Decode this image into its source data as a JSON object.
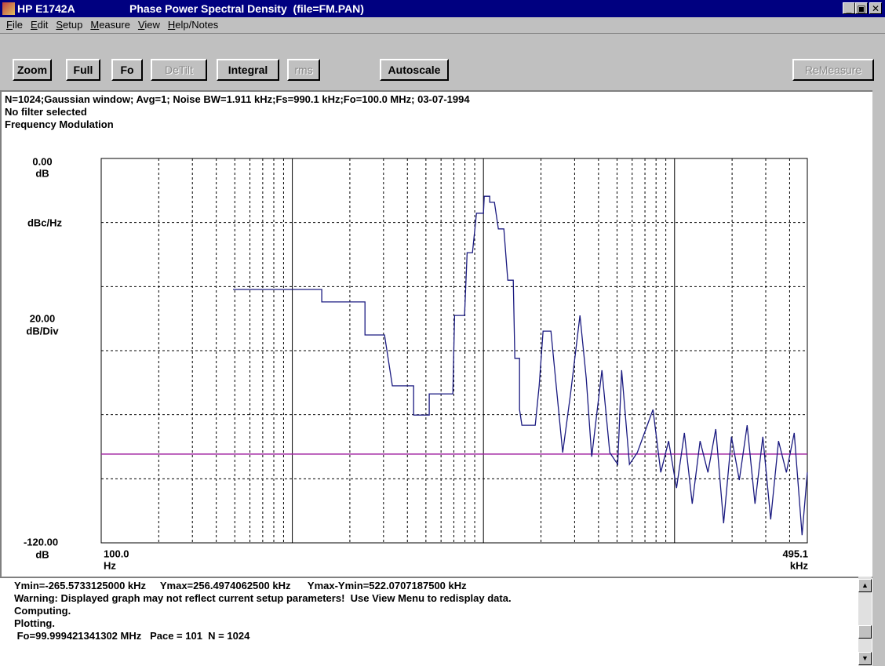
{
  "window": {
    "title": "HP E1742A",
    "subtitle": "Phase Power Spectral Density  (file=FM.PAN)"
  },
  "menu": [
    "File",
    "Edit",
    "Setup",
    "Measure",
    "View",
    "Help/Notes"
  ],
  "toolbar": [
    {
      "label": "Zoom",
      "enabled": true
    },
    {
      "label": "Full",
      "enabled": true
    },
    {
      "label": "Fo",
      "enabled": true
    },
    {
      "label": "DeTilt",
      "enabled": false
    },
    {
      "label": "Integral",
      "enabled": true
    },
    {
      "label": "rms",
      "enabled": false
    },
    {
      "label": "Autoscale",
      "enabled": true
    },
    {
      "label": "ReMeasure",
      "enabled": false
    }
  ],
  "info": [
    "N=1024;Gaussian window; Avg=1; Noise BW=1.911 kHz;Fs=990.1 kHz;Fo=100.0 MHz; 03-07-1994",
    "No filter selected",
    "Frequency Modulation"
  ],
  "chart_data": {
    "type": "line",
    "log_x": true,
    "xlim": [
      100,
      495100
    ],
    "ylim": [
      -120,
      0
    ],
    "ygrid": [
      -20,
      -40,
      -60,
      -80,
      -100
    ],
    "xgrid_minor": [
      200,
      300,
      400,
      500,
      600,
      700,
      800,
      900,
      2000,
      3000,
      4000,
      5000,
      6000,
      7000,
      8000,
      9000,
      20000,
      30000,
      40000,
      50000,
      60000,
      70000,
      80000,
      90000,
      200000,
      300000,
      400000
    ],
    "xgrid_major": [
      1000,
      10000,
      100000
    ],
    "y_top_label": "0.00",
    "y_top_unit": "dB",
    "y_unit_label": "dBc/Hz",
    "y_scale_label": "20.00",
    "y_scale_unit": "dB/Div",
    "y_bottom_label": "-120.00",
    "y_bottom_unit": "dB",
    "x_left_label": "100.0",
    "x_left_unit": "Hz",
    "x_right_label": "495.1",
    "x_right_unit": "kHz",
    "reference_line": {
      "value": -92.3,
      "color": "#a020a0"
    },
    "series": [
      {
        "color": "#1a1a80",
        "x": [
          490,
          1426,
          1426,
          2399,
          2399,
          3037,
          3338,
          4311,
          4311,
          5206,
          5206,
          6917,
          7060,
          7963,
          8213,
          8762,
          9196,
          10000,
          10100,
          10787,
          10787,
          11415,
          11970,
          12790,
          13410,
          14320,
          14600,
          15450,
          15450,
          15890,
          18660,
          19570,
          20510,
          22550,
          25990,
          28570,
          32000,
          34510,
          36870,
          41690,
          45810,
          50390,
          52830,
          58060,
          63830,
          77090,
          84720,
          93110,
          102400,
          112600,
          123700,
          136000,
          149500,
          164300,
          180600,
          198500,
          218200,
          239800,
          263600,
          289700,
          318400,
          349900,
          384600,
          422700,
          464500,
          495100
        ],
        "values": [
          -40.9,
          -40.9,
          -44.8,
          -44.8,
          -55.1,
          -55.1,
          -71.0,
          -71.0,
          -80.1,
          -80.1,
          -73.5,
          -73.5,
          -49.0,
          -49.0,
          -29.4,
          -29.4,
          -17.1,
          -17.1,
          -11.8,
          -11.8,
          -13.7,
          -13.7,
          -22.0,
          -22.0,
          -38.0,
          -38.0,
          -62.4,
          -62.4,
          -78.4,
          -83.3,
          -83.3,
          -71.0,
          -53.9,
          -53.9,
          -91.8,
          -73.5,
          -49.0,
          -68.6,
          -93.1,
          -66.1,
          -91.8,
          -95.5,
          -66.1,
          -95.5,
          -91.8,
          -78.4,
          -98.0,
          -88.2,
          -102.9,
          -85.7,
          -107.8,
          -88.2,
          -98.0,
          -84.5,
          -113.9,
          -86.9,
          -100.4,
          -83.3,
          -107.8,
          -86.9,
          -112.7,
          -88.2,
          -98.0,
          -85.7,
          -117.6,
          -98.0
        ]
      }
    ]
  },
  "log": [
    "Ymin=-265.5733125000 kHz     Ymax=256.4974062500 kHz      Ymax-Ymin=522.0707187500 kHz",
    "Warning: Displayed graph may not reflect current setup parameters!  Use View Menu to redisplay data.",
    "Computing.",
    "Plotting.",
    " Fo=99.999421341302 MHz   Pace = 101  N = 1024"
  ]
}
